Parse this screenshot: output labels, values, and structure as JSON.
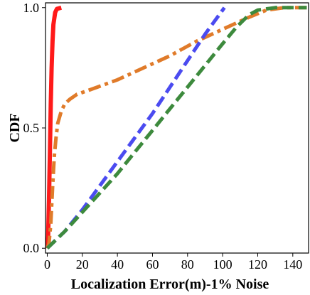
{
  "chart_data": {
    "type": "line",
    "title": "",
    "xlabel": "Localization Error(m)-1% Noise",
    "ylabel": "CDF",
    "xlim": [
      -1,
      149
    ],
    "ylim": [
      -0.02,
      1.02
    ],
    "xticks": [
      0,
      20,
      40,
      60,
      80,
      100,
      120,
      140
    ],
    "xtick_labels": [
      "0",
      "20",
      "40",
      "60",
      "80",
      "100",
      "120",
      "140"
    ],
    "yticks": [
      0.0,
      0.5,
      1.0
    ],
    "ytick_labels": [
      "0.0",
      "0.5",
      "1.0"
    ],
    "grid": false,
    "legend": "none",
    "series": [
      {
        "color": "#ff1a1a",
        "style": "solid",
        "points": [
          [
            0,
            0
          ],
          [
            0.5,
            0.05
          ],
          [
            1.0,
            0.2
          ],
          [
            1.5,
            0.4
          ],
          [
            2.0,
            0.6
          ],
          [
            2.5,
            0.75
          ],
          [
            3.0,
            0.86
          ],
          [
            3.5,
            0.93
          ],
          [
            4.5,
            0.98
          ],
          [
            5.5,
            0.995
          ],
          [
            8,
            1.0
          ]
        ]
      },
      {
        "color": "#e07b2a",
        "style": "dashdot",
        "points": [
          [
            0,
            0
          ],
          [
            1,
            0.02
          ],
          [
            2,
            0.1
          ],
          [
            3,
            0.25
          ],
          [
            4,
            0.38
          ],
          [
            5,
            0.46
          ],
          [
            6,
            0.52
          ],
          [
            8,
            0.57
          ],
          [
            10,
            0.6
          ],
          [
            13,
            0.62
          ],
          [
            17,
            0.64
          ],
          [
            25,
            0.66
          ],
          [
            40,
            0.7
          ],
          [
            55,
            0.75
          ],
          [
            70,
            0.8
          ],
          [
            85,
            0.86
          ],
          [
            100,
            0.91
          ],
          [
            115,
            0.96
          ],
          [
            125,
            0.99
          ],
          [
            135,
            1.0
          ],
          [
            148,
            1.0
          ]
        ]
      },
      {
        "color": "#4b4bf0",
        "style": "dashed",
        "points": [
          [
            0,
            0
          ],
          [
            10,
            0.07
          ],
          [
            20,
            0.16
          ],
          [
            30,
            0.26
          ],
          [
            40,
            0.36
          ],
          [
            50,
            0.46
          ],
          [
            60,
            0.56
          ],
          [
            70,
            0.67
          ],
          [
            80,
            0.78
          ],
          [
            90,
            0.89
          ],
          [
            101,
            1.0
          ]
        ]
      },
      {
        "color": "#3d8a3d",
        "style": "dashed",
        "points": [
          [
            0,
            0
          ],
          [
            10,
            0.07
          ],
          [
            20,
            0.15
          ],
          [
            30,
            0.23
          ],
          [
            40,
            0.31
          ],
          [
            50,
            0.4
          ],
          [
            60,
            0.49
          ],
          [
            70,
            0.58
          ],
          [
            80,
            0.67
          ],
          [
            90,
            0.76
          ],
          [
            100,
            0.85
          ],
          [
            108,
            0.92
          ],
          [
            115,
            0.97
          ],
          [
            120,
            0.99
          ],
          [
            130,
            1.0
          ],
          [
            148,
            1.0
          ]
        ]
      }
    ]
  }
}
